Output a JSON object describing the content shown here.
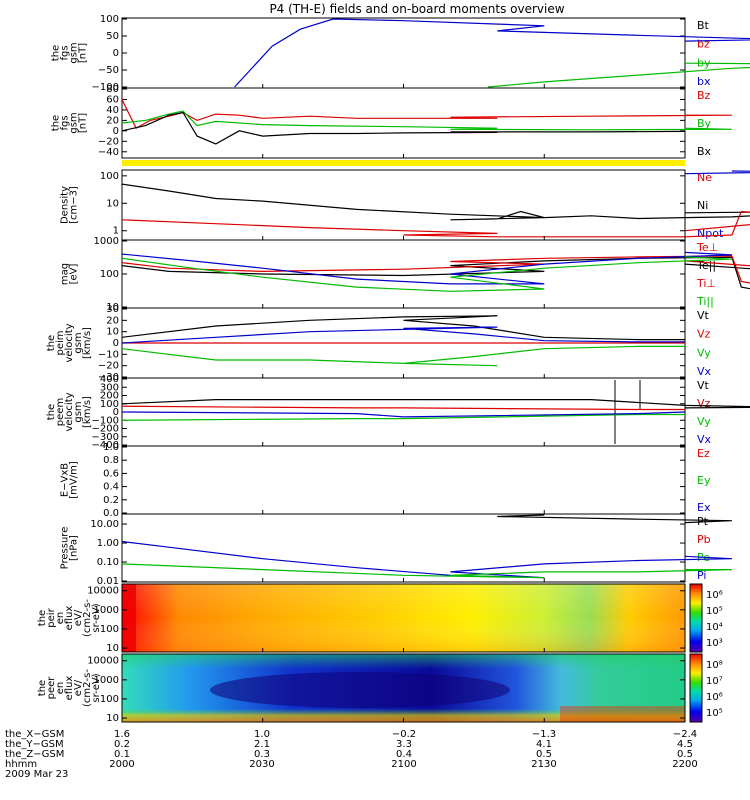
{
  "title": "P4 (TH-E) fields and on-board moments overview",
  "chart_data": [
    {
      "type": "line",
      "ylabel": [
        "the",
        "fgs",
        "gsm",
        "[nT]"
      ],
      "ylim": [
        -100,
        100
      ],
      "yticks": [
        "100",
        "50",
        "0",
        "−50",
        "−100"
      ],
      "legend": [
        {
          "label": "Bt",
          "color": "#000000"
        },
        {
          "label": "bz",
          "color": "#dd0000"
        },
        {
          "label": "by",
          "color": "#00bb00"
        },
        {
          "label": "bx",
          "color": "#0000cc"
        }
      ],
      "series": [
        {
          "name": "bx",
          "color": "#0000cc",
          "x": [
            2024,
            2028,
            2032,
            2038,
            2045,
            2060,
            2090,
            2120,
            2150,
            2180,
            2200
          ],
          "y": [
            -100,
            -40,
            20,
            70,
            100,
            95,
            80,
            65,
            52,
            40,
            35
          ]
        },
        {
          "name": "by",
          "color": "#00bb00",
          "x": [
            2118,
            2130,
            2150,
            2170,
            2190,
            2200
          ],
          "y": [
            -100,
            -85,
            -65,
            -45,
            -33,
            -30
          ]
        }
      ]
    },
    {
      "type": "line",
      "ylabel": [
        "the",
        "fgs",
        "gsm",
        "[nT]"
      ],
      "ylim": [
        -50,
        80
      ],
      "yticks": [
        "80",
        "60",
        "40",
        "20",
        "0",
        "−20",
        "−40"
      ],
      "legend": [
        {
          "label": "Bz",
          "color": "#dd0000"
        },
        {
          "label": "By",
          "color": "#00bb00"
        },
        {
          "label": "Bx",
          "color": "#000000"
        }
      ],
      "series": [
        {
          "name": "Bz",
          "color": "#dd0000",
          "x": [
            2000,
            2003,
            2006,
            2010,
            2013,
            2016,
            2020,
            2025,
            2030,
            2040,
            2050,
            2080,
            2110,
            2140,
            2170,
            2200
          ],
          "y": [
            60,
            5,
            20,
            28,
            35,
            20,
            32,
            30,
            24,
            28,
            24,
            24,
            26,
            28,
            30,
            30
          ]
        },
        {
          "name": "By",
          "color": "#00bb00",
          "x": [
            2000,
            2005,
            2010,
            2013,
            2016,
            2020,
            2030,
            2040,
            2060,
            2080,
            2110,
            2140,
            2170,
            2200
          ],
          "y": [
            15,
            20,
            32,
            38,
            10,
            18,
            12,
            10,
            8,
            5,
            3,
            2,
            3,
            5
          ]
        },
        {
          "name": "Bx",
          "color": "#000000",
          "x": [
            2000,
            2005,
            2010,
            2013,
            2016,
            2020,
            2025,
            2030,
            2040,
            2050,
            2060,
            2080,
            2110,
            2140,
            2200
          ],
          "y": [
            0,
            10,
            30,
            35,
            -10,
            -25,
            0,
            -10,
            -5,
            -5,
            -4,
            -3,
            -2,
            -2,
            -1
          ]
        }
      ]
    },
    {
      "type": "line",
      "ylabel": [
        "Density",
        "[cm−3]"
      ],
      "ylog": true,
      "ylim": [
        0.5,
        150
      ],
      "yticks": [
        "100",
        "10",
        "1"
      ],
      "legend": [
        {
          "label": "Ne",
          "color": "#dd0000"
        },
        {
          "label": "Ni",
          "color": "#000000"
        },
        {
          "label": "Npot",
          "color": "#0000cc"
        }
      ],
      "series": [
        {
          "name": "Ni",
          "color": "#000000",
          "x": [
            2000,
            2010,
            2020,
            2030,
            2050,
            2070,
            2090,
            2110,
            2120,
            2125,
            2130,
            2140,
            2150,
            2160,
            2170,
            2180,
            2190,
            2200
          ],
          "y": [
            50,
            28,
            15,
            12,
            6,
            4,
            3,
            2.5,
            2.7,
            5,
            3,
            3.5,
            2.8,
            3,
            3.2,
            4,
            5,
            4.5
          ]
        },
        {
          "name": "Ne",
          "color": "#dd0000",
          "x": [
            2000,
            2020,
            2040,
            2060,
            2080,
            2100,
            2120,
            2140,
            2160,
            2170,
            2172,
            2180,
            2190,
            2200
          ],
          "y": [
            2.5,
            1.8,
            1.3,
            1,
            0.8,
            0.7,
            0.6,
            0.6,
            0.6,
            0.7,
            5,
            4,
            3,
            1
          ]
        },
        {
          "name": "Npot",
          "color": "#0000cc",
          "x": [
            2170,
            2185,
            2200
          ],
          "y": [
            150,
            140,
            120
          ]
        }
      ]
    },
    {
      "type": "line",
      "ylabel": [
        "mag",
        "[eV]"
      ],
      "ylog": true,
      "ylim": [
        10,
        1000
      ],
      "yticks": [
        "1000",
        "100",
        "10"
      ],
      "legend": [
        {
          "label": "Te⊥",
          "color": "#dd0000"
        },
        {
          "label": "Te||",
          "color": "#000000"
        },
        {
          "label": "Ti⊥",
          "color": "#dd0000"
        },
        {
          "label": "Ti||",
          "color": "#00bb00"
        }
      ],
      "series": [
        {
          "name": "Te||",
          "color": "#000000",
          "x": [
            2000,
            2010,
            2030,
            2060,
            2090,
            2110,
            2130,
            2150,
            2170,
            2172,
            2180,
            2190,
            2200
          ],
          "y": [
            180,
            120,
            100,
            90,
            120,
            180,
            250,
            300,
            320,
            40,
            25,
            100,
            200
          ]
        },
        {
          "name": "Te⊥",
          "color": "#dd0000",
          "x": [
            2000,
            2010,
            2030,
            2060,
            2090,
            2110,
            2130,
            2150,
            2170,
            2172,
            2180,
            2190,
            2200
          ],
          "y": [
            220,
            150,
            120,
            140,
            200,
            240,
            300,
            330,
            350,
            60,
            35,
            120,
            250
          ]
        },
        {
          "name": "Ti⊥",
          "color": "#0000cc",
          "x": [
            2000,
            2015,
            2030,
            2050,
            2070,
            2090,
            2110,
            2130,
            2150,
            2170,
            2200
          ],
          "y": [
            400,
            250,
            150,
            70,
            50,
            50,
            100,
            200,
            300,
            380,
            450
          ]
        },
        {
          "name": "Ti||",
          "color": "#00bb00",
          "x": [
            2000,
            2015,
            2030,
            2050,
            2070,
            2090,
            2110,
            2130,
            2150,
            2170,
            2200
          ],
          "y": [
            300,
            150,
            80,
            40,
            30,
            35,
            80,
            150,
            220,
            280,
            330
          ]
        }
      ]
    },
    {
      "type": "line",
      "ylabel": [
        "the",
        "peim",
        "velocity",
        "gsm",
        "[km/s]"
      ],
      "ylim": [
        -30,
        30
      ],
      "yticks": [
        "30",
        "20",
        "10",
        "0",
        "−10",
        "−20",
        "−30"
      ],
      "legend": [
        {
          "label": "Vt",
          "color": "#000000"
        },
        {
          "label": "Vz",
          "color": "#dd0000"
        },
        {
          "label": "Vy",
          "color": "#00bb00"
        },
        {
          "label": "Vx",
          "color": "#0000cc"
        }
      ],
      "series": [
        {
          "name": "Vt",
          "color": "#000000",
          "x": [
            2000,
            2020,
            2040,
            2060,
            2080,
            2100,
            2115,
            2130,
            2150,
            2200
          ],
          "y": [
            5,
            15,
            20,
            23,
            24,
            20,
            15,
            5,
            3,
            3
          ]
        },
        {
          "name": "Vz",
          "color": "#dd0000",
          "x": [
            2000,
            2050,
            2100,
            2150,
            2200
          ],
          "y": [
            0,
            0,
            0,
            0,
            0
          ]
        },
        {
          "name": "Vy",
          "color": "#00bb00",
          "x": [
            2000,
            2020,
            2040,
            2060,
            2080,
            2100,
            2115,
            2130,
            2150,
            2200
          ],
          "y": [
            -5,
            -15,
            -15,
            -18,
            -20,
            -18,
            -12,
            -5,
            -3,
            -3
          ]
        },
        {
          "name": "Vx",
          "color": "#0000cc",
          "x": [
            2000,
            2020,
            2040,
            2060,
            2080,
            2100,
            2115,
            2130,
            2150,
            2200
          ],
          "y": [
            0,
            5,
            10,
            12,
            14,
            13,
            8,
            2,
            1,
            1
          ]
        }
      ]
    },
    {
      "type": "line",
      "ylabel": [
        "the",
        "peem",
        "velocity",
        "gsm",
        "[km/s]"
      ],
      "ylim": [
        -400,
        400
      ],
      "yticks": [
        "400",
        "300",
        "200",
        "100",
        "0",
        "−100",
        "−200",
        "−300",
        "−400"
      ],
      "legend": [
        {
          "label": "Vt",
          "color": "#000000"
        },
        {
          "label": "Vz",
          "color": "#dd0000"
        },
        {
          "label": "Vy",
          "color": "#00bb00"
        },
        {
          "label": "Vx",
          "color": "#0000cc"
        }
      ],
      "series": [
        {
          "name": "Vt",
          "color": "#000000",
          "x": [
            2000,
            2020,
            2040,
            2060,
            2080,
            2100,
            2120,
            2140,
            2160,
            2180,
            2200
          ],
          "y": [
            100,
            150,
            150,
            150,
            150,
            150,
            150,
            150,
            80,
            60,
            50
          ]
        },
        {
          "name": "Vz",
          "color": "#dd0000",
          "x": [
            2000,
            2050,
            2100,
            2150,
            2200
          ],
          "y": [
            70,
            50,
            50,
            30,
            30
          ]
        },
        {
          "name": "Vy",
          "color": "#00bb00",
          "x": [
            2000,
            2050,
            2100,
            2150,
            2200
          ],
          "y": [
            -100,
            -80,
            -80,
            -30,
            -30
          ]
        },
        {
          "name": "Vx",
          "color": "#0000cc",
          "x": [
            2000,
            2050,
            2100,
            2150,
            2200
          ],
          "y": [
            0,
            -20,
            -60,
            -20,
            0
          ]
        }
      ]
    },
    {
      "type": "line",
      "ylabel": [
        "E−VxB",
        "[mV/m]"
      ],
      "ylim": [
        0,
        1
      ],
      "yticks": [
        "1.0",
        "0.8",
        "0.6",
        "0.4",
        "0.2",
        "0.0"
      ],
      "legend": [
        {
          "label": "Ez",
          "color": "#dd0000"
        },
        {
          "label": "Ey",
          "color": "#00bb00"
        },
        {
          "label": "Ex",
          "color": "#0000cc"
        }
      ],
      "series": []
    },
    {
      "type": "line",
      "ylabel": [
        "Pressure",
        "[nPa]"
      ],
      "ylog": true,
      "ylim": [
        0.01,
        30
      ],
      "yticks": [
        "10.00",
        "1.00",
        "0.10",
        "0.01"
      ],
      "legend": [
        {
          "label": "Pt",
          "color": "#000000"
        },
        {
          "label": "Pb",
          "color": "#dd0000"
        },
        {
          "label": "Pe",
          "color": "#00bb00"
        },
        {
          "label": "Pi",
          "color": "#0000cc"
        }
      ],
      "series": [
        {
          "name": "Pt",
          "color": "#000000",
          "x": [
            2090,
            2120,
            2150,
            2170,
            2200
          ],
          "y": [
            30,
            25,
            18,
            15,
            12
          ]
        },
        {
          "name": "Pi",
          "color": "#0000cc",
          "x": [
            2000,
            2010,
            2030,
            2050,
            2070,
            2090,
            2110,
            2130,
            2150,
            2170,
            2200
          ],
          "y": [
            1.2,
            0.6,
            0.15,
            0.05,
            0.02,
            0.015,
            0.03,
            0.08,
            0.12,
            0.15,
            0.2
          ]
        },
        {
          "name": "Pe",
          "color": "#00bb00",
          "x": [
            2000,
            2030,
            2060,
            2090,
            2110,
            2130,
            2150,
            2170,
            2200
          ],
          "y": [
            0.08,
            0.04,
            0.02,
            0.015,
            0.02,
            0.03,
            0.03,
            0.04,
            0.04
          ]
        }
      ]
    },
    {
      "type": "heatmap",
      "ylabel": [
        "the",
        "peir",
        "en",
        "eflux",
        "eV/",
        "(cm2-s-",
        "sr-eV)"
      ],
      "ylog": true,
      "ylim": [
        7,
        20000
      ],
      "yticks": [
        "10000",
        "1000",
        "100",
        "10"
      ],
      "colorbar_ticks": [
        "10⁶",
        "10⁵",
        "10⁴",
        "10³"
      ]
    },
    {
      "type": "heatmap",
      "ylabel": [
        "the",
        "peer",
        "en",
        "eflux",
        "eV/",
        "(cm2-s-",
        "sr-eV)"
      ],
      "ylog": true,
      "ylim": [
        7,
        20000
      ],
      "yticks": [
        "10000",
        "1000",
        "100",
        "10"
      ],
      "colorbar_ticks": [
        "10⁸",
        "10⁷",
        "10⁶",
        "10⁵"
      ]
    }
  ],
  "x_axis": {
    "rows": [
      {
        "label": "the_X−GSM",
        "values": [
          "1.6",
          "1.0",
          "−0.2",
          "−1.3",
          "−2.4"
        ]
      },
      {
        "label": "the_Y−GSM",
        "values": [
          "0.2",
          "2.1",
          "3.3",
          "4.1",
          "4.5"
        ]
      },
      {
        "label": "the_Z−GSM",
        "values": [
          "0.1",
          "0.3",
          "0.4",
          "0.5",
          "0.5"
        ]
      },
      {
        "label": "hhmm",
        "values": [
          "2000",
          "2030",
          "2100",
          "2130",
          "2200"
        ]
      }
    ],
    "date": "2009 Mar 23"
  },
  "colors": {
    "black": "#000000",
    "red": "#dd0000",
    "green": "#00bb00",
    "blue": "#0000cc",
    "status_bar": "#ffee00"
  }
}
